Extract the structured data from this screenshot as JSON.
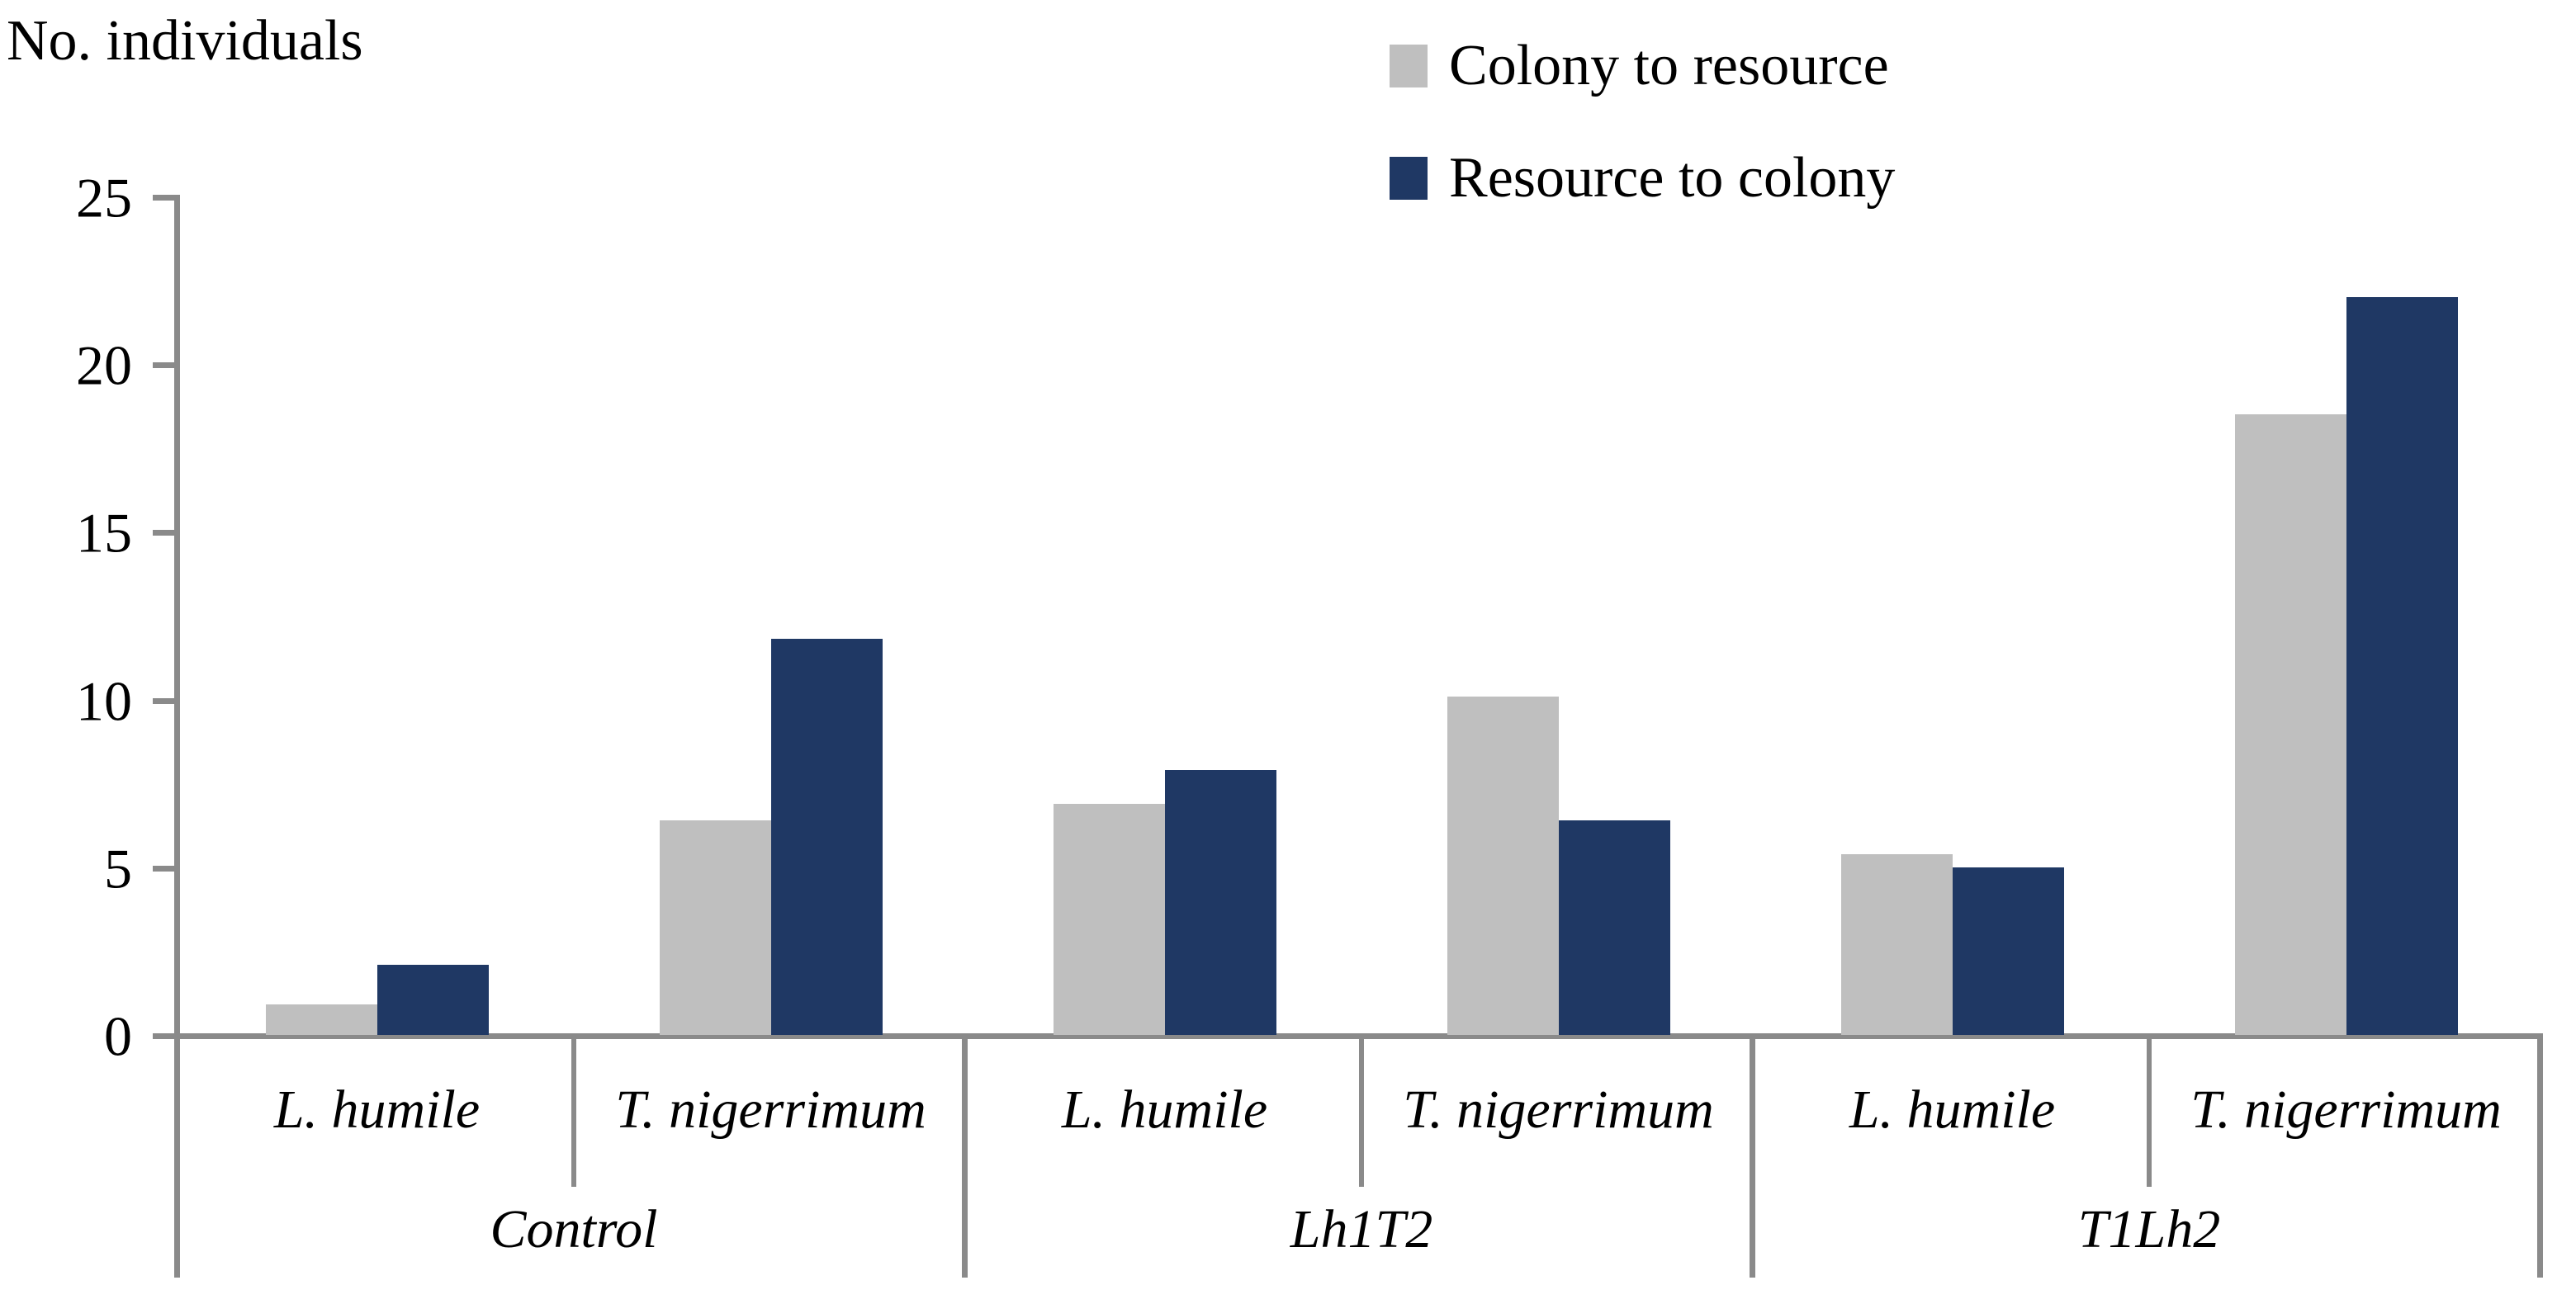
{
  "ylabel": "No. individuals",
  "legend": [
    {
      "label": "Colony to resource",
      "color": "#bfbfbf",
      "icon": "gray-square-swatch"
    },
    {
      "label": "Resource to colony",
      "color": "#1f3864",
      "icon": "navy-square-swatch"
    }
  ],
  "colors": {
    "axis": "#8a8a8a",
    "bar_gray": "#bfbfbf",
    "bar_navy": "#1f3864",
    "text": "#000000"
  },
  "chart_data": {
    "type": "bar",
    "title": "",
    "ylabel": "No. individuals",
    "xlabel": "",
    "ylim": [
      0,
      25
    ],
    "yticks": [
      0,
      5,
      10,
      15,
      20,
      25
    ],
    "grid": false,
    "legend_position": "top-right",
    "series_names": [
      "Colony to resource",
      "Resource to colony"
    ],
    "groups": [
      {
        "label": "Control",
        "species": [
          {
            "label": "L. humile",
            "values": [
              0.9,
              2.1
            ]
          },
          {
            "label": "T. nigerrimum",
            "values": [
              6.4,
              11.8
            ]
          }
        ]
      },
      {
        "label": "Lh1T2",
        "species": [
          {
            "label": "L. humile",
            "values": [
              6.9,
              7.9
            ]
          },
          {
            "label": "T. nigerrimum",
            "values": [
              10.1,
              6.4
            ]
          }
        ]
      },
      {
        "label": "T1Lh2",
        "species": [
          {
            "label": "L. humile",
            "values": [
              5.4,
              5.0
            ]
          },
          {
            "label": "T. nigerrimum",
            "values": [
              18.5,
              22.0
            ]
          }
        ]
      }
    ]
  }
}
